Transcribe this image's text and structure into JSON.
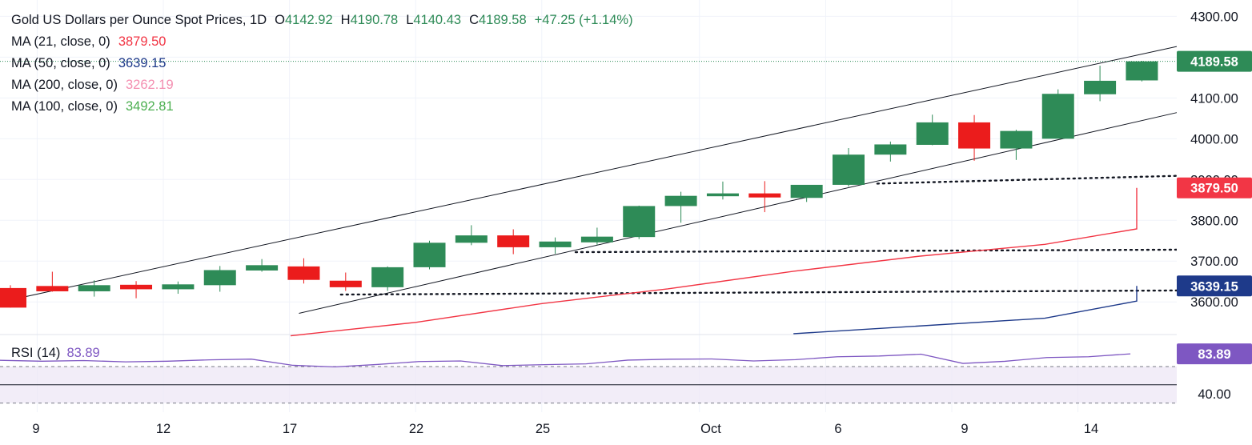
{
  "chart_data": {
    "type": "candlestick",
    "title": "Gold US Dollars per Ounce Spot Prices, 1D",
    "ohlc_header": {
      "o_label": "O",
      "o": "4142.92",
      "h_label": "H",
      "h": "4190.78",
      "l_label": "L",
      "l": "4140.43",
      "c_label": "C",
      "c": "4189.58",
      "change": "+47.25 (+1.14%)"
    },
    "x_ticks": [
      "9",
      "12",
      "17",
      "22",
      "25",
      "Oct",
      "6",
      "9",
      "14"
    ],
    "price_axis": {
      "ticks": [
        "4300.00",
        "4100.00",
        "4000.00",
        "3900.00",
        "3800.00",
        "3700.00",
        "3600.00"
      ],
      "ylim": [
        3520,
        4340
      ]
    },
    "rsi_axis": {
      "ticks": [
        "40.00"
      ],
      "ylim": [
        20,
        105
      ],
      "overbought": 70,
      "oversold": 30,
      "mid": 50
    },
    "candles": [
      {
        "o": 3634,
        "h": 3641,
        "l": 3586,
        "c": 3586
      },
      {
        "o": 3639,
        "h": 3674,
        "l": 3625,
        "c": 3626
      },
      {
        "o": 3626,
        "h": 3653,
        "l": 3613,
        "c": 3641
      },
      {
        "o": 3642,
        "h": 3651,
        "l": 3609,
        "c": 3631
      },
      {
        "o": 3631,
        "h": 3650,
        "l": 3620,
        "c": 3643
      },
      {
        "o": 3641,
        "h": 3688,
        "l": 3625,
        "c": 3678
      },
      {
        "o": 3677,
        "h": 3705,
        "l": 3674,
        "c": 3690
      },
      {
        "o": 3687,
        "h": 3707,
        "l": 3645,
        "c": 3654
      },
      {
        "o": 3652,
        "h": 3672,
        "l": 3627,
        "c": 3636
      },
      {
        "o": 3636,
        "h": 3687,
        "l": 3627,
        "c": 3685
      },
      {
        "o": 3685,
        "h": 3750,
        "l": 3680,
        "c": 3745
      },
      {
        "o": 3745,
        "h": 3788,
        "l": 3739,
        "c": 3763
      },
      {
        "o": 3763,
        "h": 3778,
        "l": 3717,
        "c": 3734
      },
      {
        "o": 3734,
        "h": 3758,
        "l": 3718,
        "c": 3748
      },
      {
        "o": 3746,
        "h": 3782,
        "l": 3740,
        "c": 3760
      },
      {
        "o": 3759,
        "h": 3836,
        "l": 3754,
        "c": 3835
      },
      {
        "o": 3835,
        "h": 3870,
        "l": 3794,
        "c": 3860
      },
      {
        "o": 3859,
        "h": 3895,
        "l": 3851,
        "c": 3866
      },
      {
        "o": 3866,
        "h": 3896,
        "l": 3820,
        "c": 3856
      },
      {
        "o": 3855,
        "h": 3885,
        "l": 3845,
        "c": 3887
      },
      {
        "o": 3887,
        "h": 3977,
        "l": 3883,
        "c": 3961
      },
      {
        "o": 3961,
        "h": 3993,
        "l": 3944,
        "c": 3986
      },
      {
        "o": 3985,
        "h": 4059,
        "l": 3984,
        "c": 4040
      },
      {
        "o": 4040,
        "h": 4058,
        "l": 3946,
        "c": 3976
      },
      {
        "o": 3976,
        "h": 4022,
        "l": 3948,
        "c": 4019
      },
      {
        "o": 4000,
        "h": 4121,
        "l": 4001,
        "c": 4110
      },
      {
        "o": 4109,
        "h": 4179,
        "l": 4092,
        "c": 4142
      },
      {
        "o": 4142.92,
        "h": 4190.78,
        "l": 4140.43,
        "c": 4189.58
      }
    ],
    "series": [
      {
        "name": "MA (21, close, 0)",
        "value_label": "3879.50",
        "color": "#f23645",
        "points": [
          [
            7,
            3517
          ],
          [
            10,
            3550
          ],
          [
            13,
            3596
          ],
          [
            16,
            3632
          ],
          [
            19,
            3675
          ],
          [
            22,
            3712
          ],
          [
            25,
            3741
          ],
          [
            28,
            3779
          ],
          [
            31,
            3807
          ],
          [
            34,
            3843
          ],
          [
            37,
            3879.5
          ]
        ]
      },
      {
        "name": "MA (50, close, 0)",
        "value_label": "3639.15",
        "color": "#1e3a8a",
        "points": [
          [
            19,
            3522
          ],
          [
            25,
            3560
          ],
          [
            31,
            3602
          ],
          [
            37,
            3639.15
          ]
        ]
      },
      {
        "name": "MA (200, close, 0)",
        "value_label": "3262.19",
        "color": "#f48fb1",
        "points": []
      },
      {
        "name": "MA (100, close, 0)",
        "value_label": "3492.81",
        "color": "#4caf50",
        "points": []
      }
    ],
    "rsi": {
      "name": "RSI (14)",
      "value_label": "83.89",
      "color": "#7e57c2",
      "values": [
        76.8,
        75.8,
        76.5,
        75.1,
        75.8,
        77.3,
        78.1,
        71.3,
        69.6,
        72.2,
        75.4,
        76.1,
        71.0,
        72.0,
        72.9,
        77.0,
        78.0,
        78.3,
        76.1,
        77.5,
        80.7,
        81.5,
        83.5,
        73.4,
        75.7,
        79.8,
        80.7,
        83.89
      ]
    },
    "channel_lines": [
      {
        "from": [
          -1,
          3580
        ],
        "to": [
          37.2,
          4226
        ]
      },
      {
        "from": [
          7,
          3572
        ],
        "to": [
          37.2,
          4064
        ]
      }
    ],
    "support_lines": [
      {
        "from": [
          8,
          3618
        ],
        "to": [
          37.2,
          3628
        ]
      },
      {
        "from": [
          13.6,
          3722
        ],
        "to": [
          37.2,
          3728
        ]
      },
      {
        "from": [
          20.8,
          3890
        ],
        "to": [
          37.2,
          3909
        ]
      }
    ],
    "last_price": {
      "value": 4189.58,
      "label": "4189.58",
      "color": "#2e8b57"
    },
    "grid": true,
    "colors": {
      "up": "#2e8b57",
      "down": "#eb1c1c",
      "axis_text": "#131722",
      "grid": "#f0f3fa"
    }
  }
}
